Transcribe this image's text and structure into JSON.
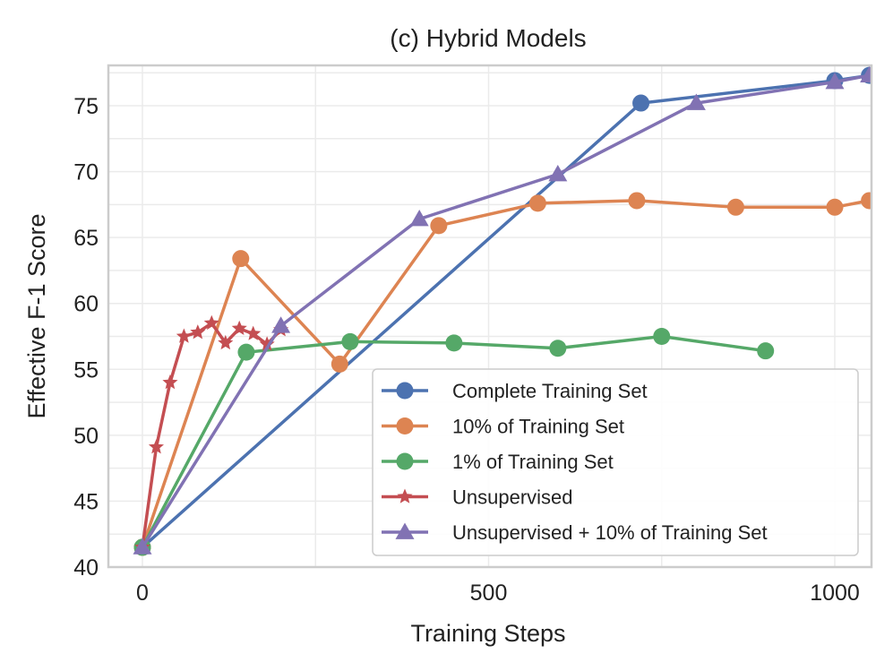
{
  "chart_data": {
    "type": "line",
    "title": "(c) Hybrid Models",
    "xlabel": "Training Steps",
    "ylabel": "Effective F-1 Score",
    "xlim": [
      -50,
      1050
    ],
    "ylim": [
      40,
      78
    ],
    "xticks": [
      0,
      500,
      1000
    ],
    "yticks": [
      40,
      45,
      50,
      55,
      60,
      65,
      70,
      75
    ],
    "grid": true,
    "legend_position": "lower-right",
    "series": [
      {
        "name": "Complete Training Set",
        "color": "#4C72B0",
        "marker": "circle",
        "x": [
          0,
          720,
          1000,
          1050
        ],
        "y": [
          41.5,
          75.2,
          76.9,
          77.3
        ]
      },
      {
        "name": "10% of Training Set",
        "color": "#DD8452",
        "marker": "circle",
        "x": [
          0,
          142,
          285,
          428,
          571,
          714,
          857,
          1000,
          1050
        ],
        "y": [
          41.5,
          63.4,
          55.4,
          65.9,
          67.6,
          67.8,
          67.3,
          67.3,
          67.8
        ]
      },
      {
        "name": "1% of Training Set",
        "color": "#55A868",
        "marker": "circle",
        "x": [
          0,
          150,
          300,
          450,
          600,
          750,
          900
        ],
        "y": [
          41.5,
          56.3,
          57.1,
          57.0,
          56.6,
          57.5,
          56.4
        ]
      },
      {
        "name": "Unsupervised",
        "color": "#C44E52",
        "marker": "star",
        "x": [
          0,
          20,
          40,
          60,
          80,
          100,
          120,
          140,
          160,
          180,
          200
        ],
        "y": [
          41.5,
          49.1,
          54.0,
          57.5,
          57.8,
          58.5,
          57.0,
          58.1,
          57.7,
          56.9,
          58.0
        ]
      },
      {
        "name": "Unsupervised + 10% of Training Set",
        "color": "#8172B3",
        "marker": "triangle",
        "x": [
          0,
          200,
          400,
          600,
          800,
          1000,
          1050
        ],
        "y": [
          41.5,
          58.3,
          66.4,
          69.8,
          75.2,
          76.8,
          77.3
        ]
      }
    ]
  }
}
